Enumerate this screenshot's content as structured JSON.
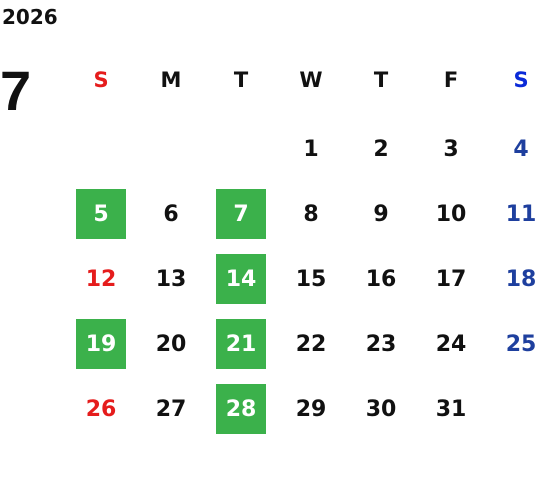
{
  "calendar": {
    "year": "2026",
    "month": "7",
    "weekday_labels": [
      "S",
      "M",
      "T",
      "W",
      "T",
      "F",
      "S"
    ],
    "highlight_color": "#3bb14b",
    "sunday_color": "#e51c1c",
    "saturday_color": "#1e3f9e",
    "weeks": [
      [
        "",
        "",
        "",
        "1",
        "2",
        "3",
        "4"
      ],
      [
        "5",
        "6",
        "7",
        "8",
        "9",
        "10",
        "11"
      ],
      [
        "12",
        "13",
        "14",
        "15",
        "16",
        "17",
        "18"
      ],
      [
        "19",
        "20",
        "21",
        "22",
        "23",
        "24",
        "25"
      ],
      [
        "26",
        "27",
        "28",
        "29",
        "30",
        "31",
        ""
      ]
    ],
    "highlighted_days": [
      "5",
      "7",
      "14",
      "19",
      "21",
      "28"
    ]
  }
}
